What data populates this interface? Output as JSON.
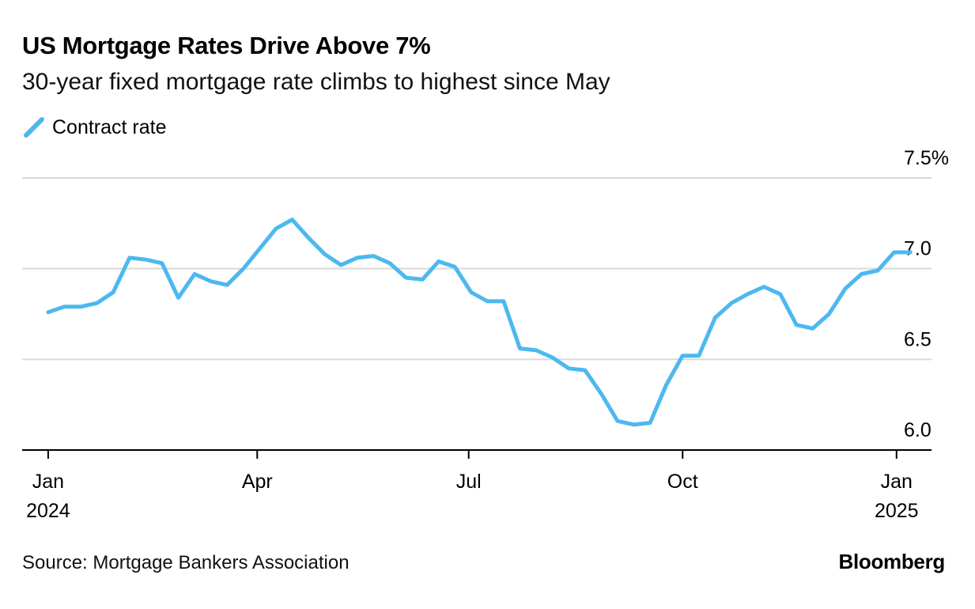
{
  "title": "US Mortgage Rates Drive Above 7%",
  "subtitle": "30-year fixed mortgage rate climbs to highest since May",
  "source": "Source: Mortgage Bankers Association",
  "brand": "Bloomberg",
  "colors": {
    "series": "#4db8f0",
    "grid": "#d9d9d9",
    "axis": "#000000"
  },
  "chart_data": {
    "type": "line",
    "title": "US Mortgage Rates Drive Above 7%",
    "subtitle": "30-year fixed mortgage rate climbs to highest since May",
    "xlabel": "",
    "ylabel": "",
    "ylim": [
      6.0,
      7.5
    ],
    "yticks": [
      {
        "value": 6.0,
        "label": "6.0"
      },
      {
        "value": 6.5,
        "label": "6.5"
      },
      {
        "value": 7.0,
        "label": "7.0"
      },
      {
        "value": 7.5,
        "label": "7.5%"
      }
    ],
    "xlim": [
      -1.6,
      54.3
    ],
    "xticks": [
      {
        "week": 0,
        "label": "Jan",
        "sublabel": "2024"
      },
      {
        "week": 12.85,
        "label": "Apr",
        "sublabel": ""
      },
      {
        "week": 25.85,
        "label": "Jul",
        "sublabel": ""
      },
      {
        "week": 39,
        "label": "Oct",
        "sublabel": ""
      },
      {
        "week": 52.15,
        "label": "Jan",
        "sublabel": "2025"
      }
    ],
    "legend": [
      {
        "name": "Contract rate",
        "color": "#4db8f0"
      }
    ],
    "legend_position": "top-left",
    "grid": true,
    "series": [
      {
        "name": "Contract rate",
        "x": [
          0,
          1,
          2,
          3,
          4,
          5,
          6,
          7,
          8,
          9,
          10,
          11,
          12,
          13,
          14,
          15,
          16,
          17,
          18,
          19,
          20,
          21,
          22,
          23,
          24,
          25,
          26,
          27,
          28,
          29,
          30,
          31,
          32,
          33,
          34,
          35,
          36,
          37,
          38,
          39,
          40,
          41,
          42,
          43,
          44,
          45,
          46,
          47,
          48,
          49,
          50,
          51,
          52,
          53
        ],
        "values": [
          6.76,
          6.79,
          6.79,
          6.81,
          6.87,
          7.06,
          7.05,
          7.03,
          6.84,
          6.97,
          6.93,
          6.91,
          7.0,
          7.11,
          7.22,
          7.27,
          7.17,
          7.08,
          7.02,
          7.06,
          7.07,
          7.03,
          6.95,
          6.94,
          7.04,
          7.01,
          6.87,
          6.82,
          6.82,
          6.56,
          6.55,
          6.51,
          6.45,
          6.44,
          6.31,
          6.16,
          6.14,
          6.15,
          6.36,
          6.52,
          6.52,
          6.73,
          6.81,
          6.86,
          6.9,
          6.86,
          6.69,
          6.67,
          6.75,
          6.89,
          6.97,
          6.99,
          7.09,
          7.09
        ]
      }
    ]
  }
}
